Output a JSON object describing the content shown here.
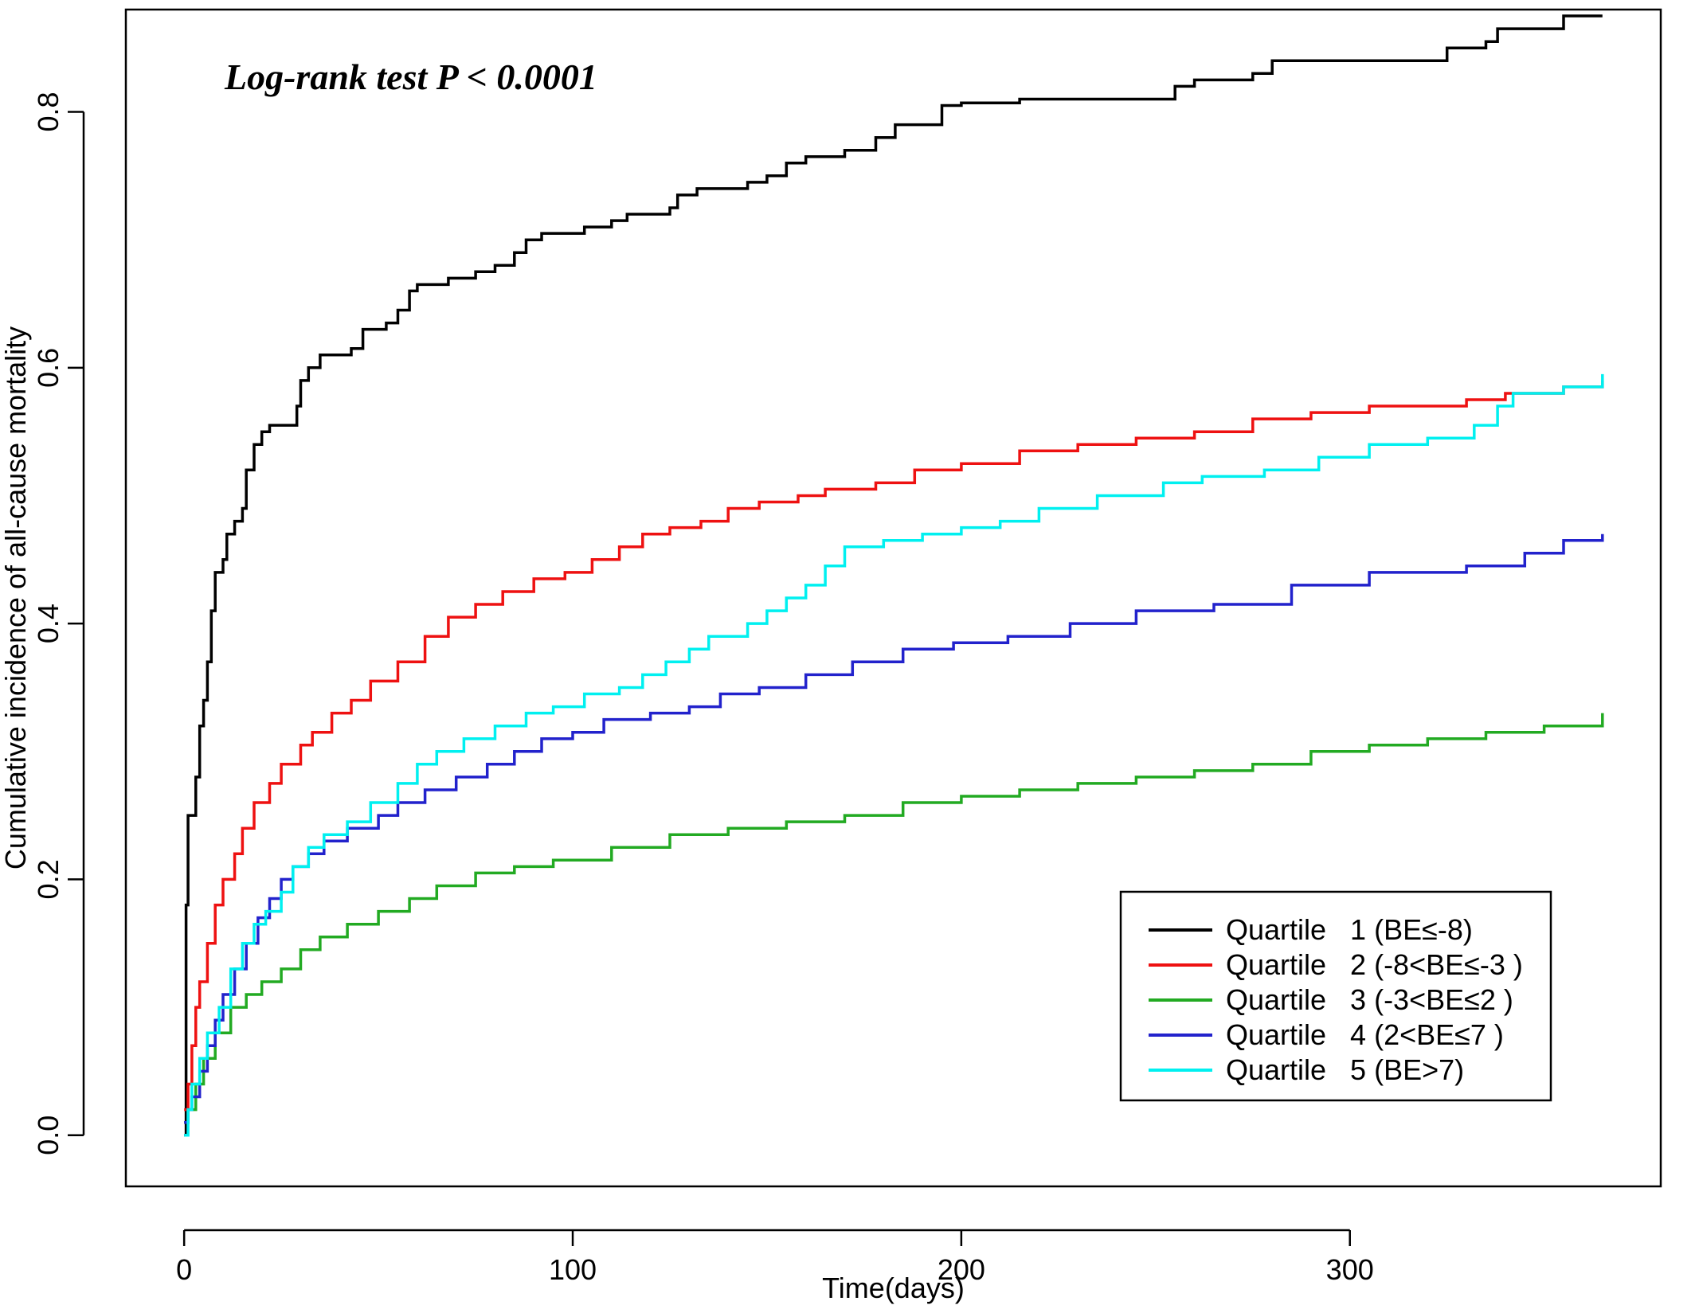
{
  "chart_data": {
    "type": "line",
    "step": true,
    "title": "",
    "annotation": "Log-rank test P < 0.0001",
    "xlabel": "Time(days)",
    "ylabel": "Cumulative incidence of all-cause mortality",
    "xlim": [
      -15,
      380
    ],
    "ylim": [
      -0.04,
      0.88
    ],
    "xticks": [
      0,
      100,
      200,
      300
    ],
    "yticks": [
      0.0,
      0.2,
      0.4,
      0.6,
      0.8
    ],
    "xtick_labels": [
      "0",
      "100",
      "200",
      "300"
    ],
    "ytick_labels": [
      "0.0",
      "0.2",
      "0.4",
      "0.6",
      "0.8"
    ],
    "grid": false,
    "legend_position": "bottom-right",
    "series": [
      {
        "name": "Quartile   1 (BE≤-8)",
        "color": "#000000",
        "points": [
          [
            0,
            0
          ],
          [
            0.5,
            0.18
          ],
          [
            1,
            0.25
          ],
          [
            2,
            0.25
          ],
          [
            3,
            0.28
          ],
          [
            4,
            0.32
          ],
          [
            5,
            0.34
          ],
          [
            6,
            0.37
          ],
          [
            7,
            0.41
          ],
          [
            8,
            0.44
          ],
          [
            10,
            0.45
          ],
          [
            11,
            0.47
          ],
          [
            13,
            0.48
          ],
          [
            15,
            0.49
          ],
          [
            16,
            0.52
          ],
          [
            18,
            0.54
          ],
          [
            20,
            0.55
          ],
          [
            22,
            0.555
          ],
          [
            28,
            0.555
          ],
          [
            29,
            0.57
          ],
          [
            30,
            0.59
          ],
          [
            32,
            0.6
          ],
          [
            35,
            0.61
          ],
          [
            43,
            0.615
          ],
          [
            46,
            0.63
          ],
          [
            52,
            0.635
          ],
          [
            55,
            0.645
          ],
          [
            58,
            0.66
          ],
          [
            60,
            0.665
          ],
          [
            68,
            0.67
          ],
          [
            75,
            0.675
          ],
          [
            80,
            0.68
          ],
          [
            85,
            0.69
          ],
          [
            88,
            0.7
          ],
          [
            92,
            0.705
          ],
          [
            103,
            0.71
          ],
          [
            110,
            0.715
          ],
          [
            114,
            0.72
          ],
          [
            125,
            0.725
          ],
          [
            127,
            0.735
          ],
          [
            132,
            0.74
          ],
          [
            145,
            0.745
          ],
          [
            150,
            0.75
          ],
          [
            155,
            0.76
          ],
          [
            160,
            0.765
          ],
          [
            170,
            0.77
          ],
          [
            178,
            0.78
          ],
          [
            183,
            0.79
          ],
          [
            195,
            0.805
          ],
          [
            200,
            0.807
          ],
          [
            215,
            0.81
          ],
          [
            250,
            0.81
          ],
          [
            255,
            0.82
          ],
          [
            260,
            0.825
          ],
          [
            275,
            0.83
          ],
          [
            280,
            0.84
          ],
          [
            320,
            0.84
          ],
          [
            325,
            0.85
          ],
          [
            335,
            0.855
          ],
          [
            338,
            0.865
          ],
          [
            355,
            0.875
          ],
          [
            365,
            0.875
          ]
        ]
      },
      {
        "name": "Quartile   2 (-8<BE≤-3 )",
        "color": "#ee1111",
        "points": [
          [
            0,
            0.02
          ],
          [
            1,
            0.04
          ],
          [
            2,
            0.07
          ],
          [
            3,
            0.1
          ],
          [
            4,
            0.12
          ],
          [
            6,
            0.15
          ],
          [
            8,
            0.18
          ],
          [
            10,
            0.2
          ],
          [
            13,
            0.22
          ],
          [
            15,
            0.24
          ],
          [
            18,
            0.26
          ],
          [
            22,
            0.275
          ],
          [
            25,
            0.29
          ],
          [
            30,
            0.305
          ],
          [
            33,
            0.315
          ],
          [
            38,
            0.33
          ],
          [
            43,
            0.34
          ],
          [
            48,
            0.355
          ],
          [
            55,
            0.37
          ],
          [
            62,
            0.39
          ],
          [
            68,
            0.405
          ],
          [
            75,
            0.415
          ],
          [
            82,
            0.425
          ],
          [
            90,
            0.435
          ],
          [
            98,
            0.44
          ],
          [
            105,
            0.45
          ],
          [
            112,
            0.46
          ],
          [
            118,
            0.47
          ],
          [
            125,
            0.475
          ],
          [
            133,
            0.48
          ],
          [
            140,
            0.49
          ],
          [
            148,
            0.495
          ],
          [
            158,
            0.5
          ],
          [
            165,
            0.505
          ],
          [
            178,
            0.51
          ],
          [
            188,
            0.52
          ],
          [
            200,
            0.525
          ],
          [
            215,
            0.535
          ],
          [
            230,
            0.54
          ],
          [
            245,
            0.545
          ],
          [
            260,
            0.55
          ],
          [
            275,
            0.56
          ],
          [
            290,
            0.565
          ],
          [
            305,
            0.57
          ],
          [
            330,
            0.575
          ],
          [
            340,
            0.58
          ],
          [
            355,
            0.585
          ],
          [
            365,
            0.59
          ]
        ]
      },
      {
        "name": "Quartile   3 (-3<BE≤2 )",
        "color": "#22aa22",
        "points": [
          [
            0,
            0.01
          ],
          [
            1,
            0.02
          ],
          [
            3,
            0.04
          ],
          [
            5,
            0.06
          ],
          [
            8,
            0.08
          ],
          [
            12,
            0.1
          ],
          [
            16,
            0.11
          ],
          [
            20,
            0.12
          ],
          [
            25,
            0.13
          ],
          [
            30,
            0.145
          ],
          [
            35,
            0.155
          ],
          [
            42,
            0.165
          ],
          [
            50,
            0.175
          ],
          [
            58,
            0.185
          ],
          [
            65,
            0.195
          ],
          [
            75,
            0.205
          ],
          [
            85,
            0.21
          ],
          [
            95,
            0.215
          ],
          [
            110,
            0.225
          ],
          [
            125,
            0.235
          ],
          [
            140,
            0.24
          ],
          [
            155,
            0.245
          ],
          [
            170,
            0.25
          ],
          [
            185,
            0.26
          ],
          [
            200,
            0.265
          ],
          [
            215,
            0.27
          ],
          [
            230,
            0.275
          ],
          [
            245,
            0.28
          ],
          [
            260,
            0.285
          ],
          [
            275,
            0.29
          ],
          [
            290,
            0.3
          ],
          [
            305,
            0.305
          ],
          [
            320,
            0.31
          ],
          [
            335,
            0.315
          ],
          [
            350,
            0.32
          ],
          [
            365,
            0.33
          ]
        ]
      },
      {
        "name": "Quartile   4 (2<BE≤7 )",
        "color": "#2222cc",
        "points": [
          [
            0,
            0.01
          ],
          [
            1,
            0.02
          ],
          [
            2,
            0.03
          ],
          [
            4,
            0.05
          ],
          [
            6,
            0.07
          ],
          [
            8,
            0.09
          ],
          [
            10,
            0.11
          ],
          [
            13,
            0.13
          ],
          [
            16,
            0.15
          ],
          [
            19,
            0.17
          ],
          [
            22,
            0.185
          ],
          [
            25,
            0.2
          ],
          [
            28,
            0.21
          ],
          [
            32,
            0.22
          ],
          [
            36,
            0.23
          ],
          [
            42,
            0.24
          ],
          [
            50,
            0.25
          ],
          [
            55,
            0.26
          ],
          [
            62,
            0.27
          ],
          [
            70,
            0.28
          ],
          [
            78,
            0.29
          ],
          [
            85,
            0.3
          ],
          [
            92,
            0.31
          ],
          [
            100,
            0.315
          ],
          [
            108,
            0.325
          ],
          [
            120,
            0.33
          ],
          [
            130,
            0.335
          ],
          [
            138,
            0.345
          ],
          [
            148,
            0.35
          ],
          [
            160,
            0.36
          ],
          [
            172,
            0.37
          ],
          [
            185,
            0.38
          ],
          [
            198,
            0.385
          ],
          [
            212,
            0.39
          ],
          [
            228,
            0.4
          ],
          [
            245,
            0.41
          ],
          [
            265,
            0.415
          ],
          [
            285,
            0.43
          ],
          [
            305,
            0.44
          ],
          [
            330,
            0.445
          ],
          [
            345,
            0.455
          ],
          [
            355,
            0.465
          ],
          [
            365,
            0.47
          ]
        ]
      },
      {
        "name": "Quartile   5 (BE>7)",
        "color": "#00f0f0",
        "points": [
          [
            0,
            0
          ],
          [
            1,
            0.02
          ],
          [
            2,
            0.04
          ],
          [
            4,
            0.06
          ],
          [
            6,
            0.08
          ],
          [
            9,
            0.1
          ],
          [
            12,
            0.13
          ],
          [
            15,
            0.15
          ],
          [
            18,
            0.165
          ],
          [
            21,
            0.175
          ],
          [
            25,
            0.19
          ],
          [
            28,
            0.21
          ],
          [
            32,
            0.225
          ],
          [
            36,
            0.235
          ],
          [
            42,
            0.245
          ],
          [
            48,
            0.26
          ],
          [
            55,
            0.275
          ],
          [
            60,
            0.29
          ],
          [
            65,
            0.3
          ],
          [
            72,
            0.31
          ],
          [
            80,
            0.32
          ],
          [
            88,
            0.33
          ],
          [
            95,
            0.335
          ],
          [
            103,
            0.345
          ],
          [
            112,
            0.35
          ],
          [
            118,
            0.36
          ],
          [
            124,
            0.37
          ],
          [
            130,
            0.38
          ],
          [
            135,
            0.39
          ],
          [
            145,
            0.4
          ],
          [
            150,
            0.41
          ],
          [
            155,
            0.42
          ],
          [
            160,
            0.43
          ],
          [
            165,
            0.445
          ],
          [
            170,
            0.46
          ],
          [
            180,
            0.465
          ],
          [
            190,
            0.47
          ],
          [
            200,
            0.475
          ],
          [
            210,
            0.48
          ],
          [
            220,
            0.49
          ],
          [
            235,
            0.5
          ],
          [
            252,
            0.51
          ],
          [
            262,
            0.515
          ],
          [
            278,
            0.52
          ],
          [
            292,
            0.53
          ],
          [
            305,
            0.54
          ],
          [
            320,
            0.545
          ],
          [
            332,
            0.555
          ],
          [
            338,
            0.57
          ],
          [
            342,
            0.58
          ],
          [
            355,
            0.585
          ],
          [
            365,
            0.595
          ]
        ]
      }
    ]
  }
}
